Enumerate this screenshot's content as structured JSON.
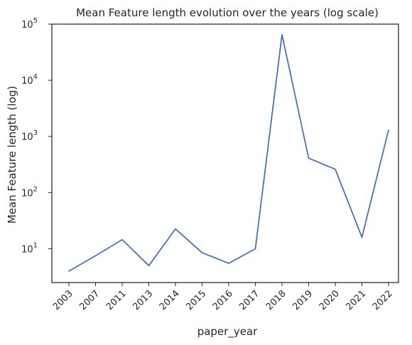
{
  "chart_data": {
    "type": "line",
    "title": "Mean Feature length evolution over the years (log scale)",
    "xlabel": "paper_year",
    "ylabel": "Mean Feature length (log)",
    "yscale": "log",
    "ylim": [
      2.5,
      100000
    ],
    "grid": false,
    "categories": [
      "2003",
      "2007",
      "2011",
      "2013",
      "2014",
      "2015",
      "2016",
      "2017",
      "2018",
      "2019",
      "2020",
      "2021",
      "2022"
    ],
    "series": [
      {
        "color": "#4c72b0",
        "values": [
          4,
          7.5,
          14.5,
          5,
          22.5,
          8.5,
          5.5,
          10,
          65000,
          410,
          260,
          16,
          1300
        ]
      }
    ],
    "y_ticks": [
      {
        "base": "10",
        "exp": "1",
        "value": 10
      },
      {
        "base": "10",
        "exp": "2",
        "value": 100
      },
      {
        "base": "10",
        "exp": "3",
        "value": 1000
      },
      {
        "base": "10",
        "exp": "4",
        "value": 10000
      },
      {
        "base": "10",
        "exp": "5",
        "value": 100000
      }
    ]
  }
}
